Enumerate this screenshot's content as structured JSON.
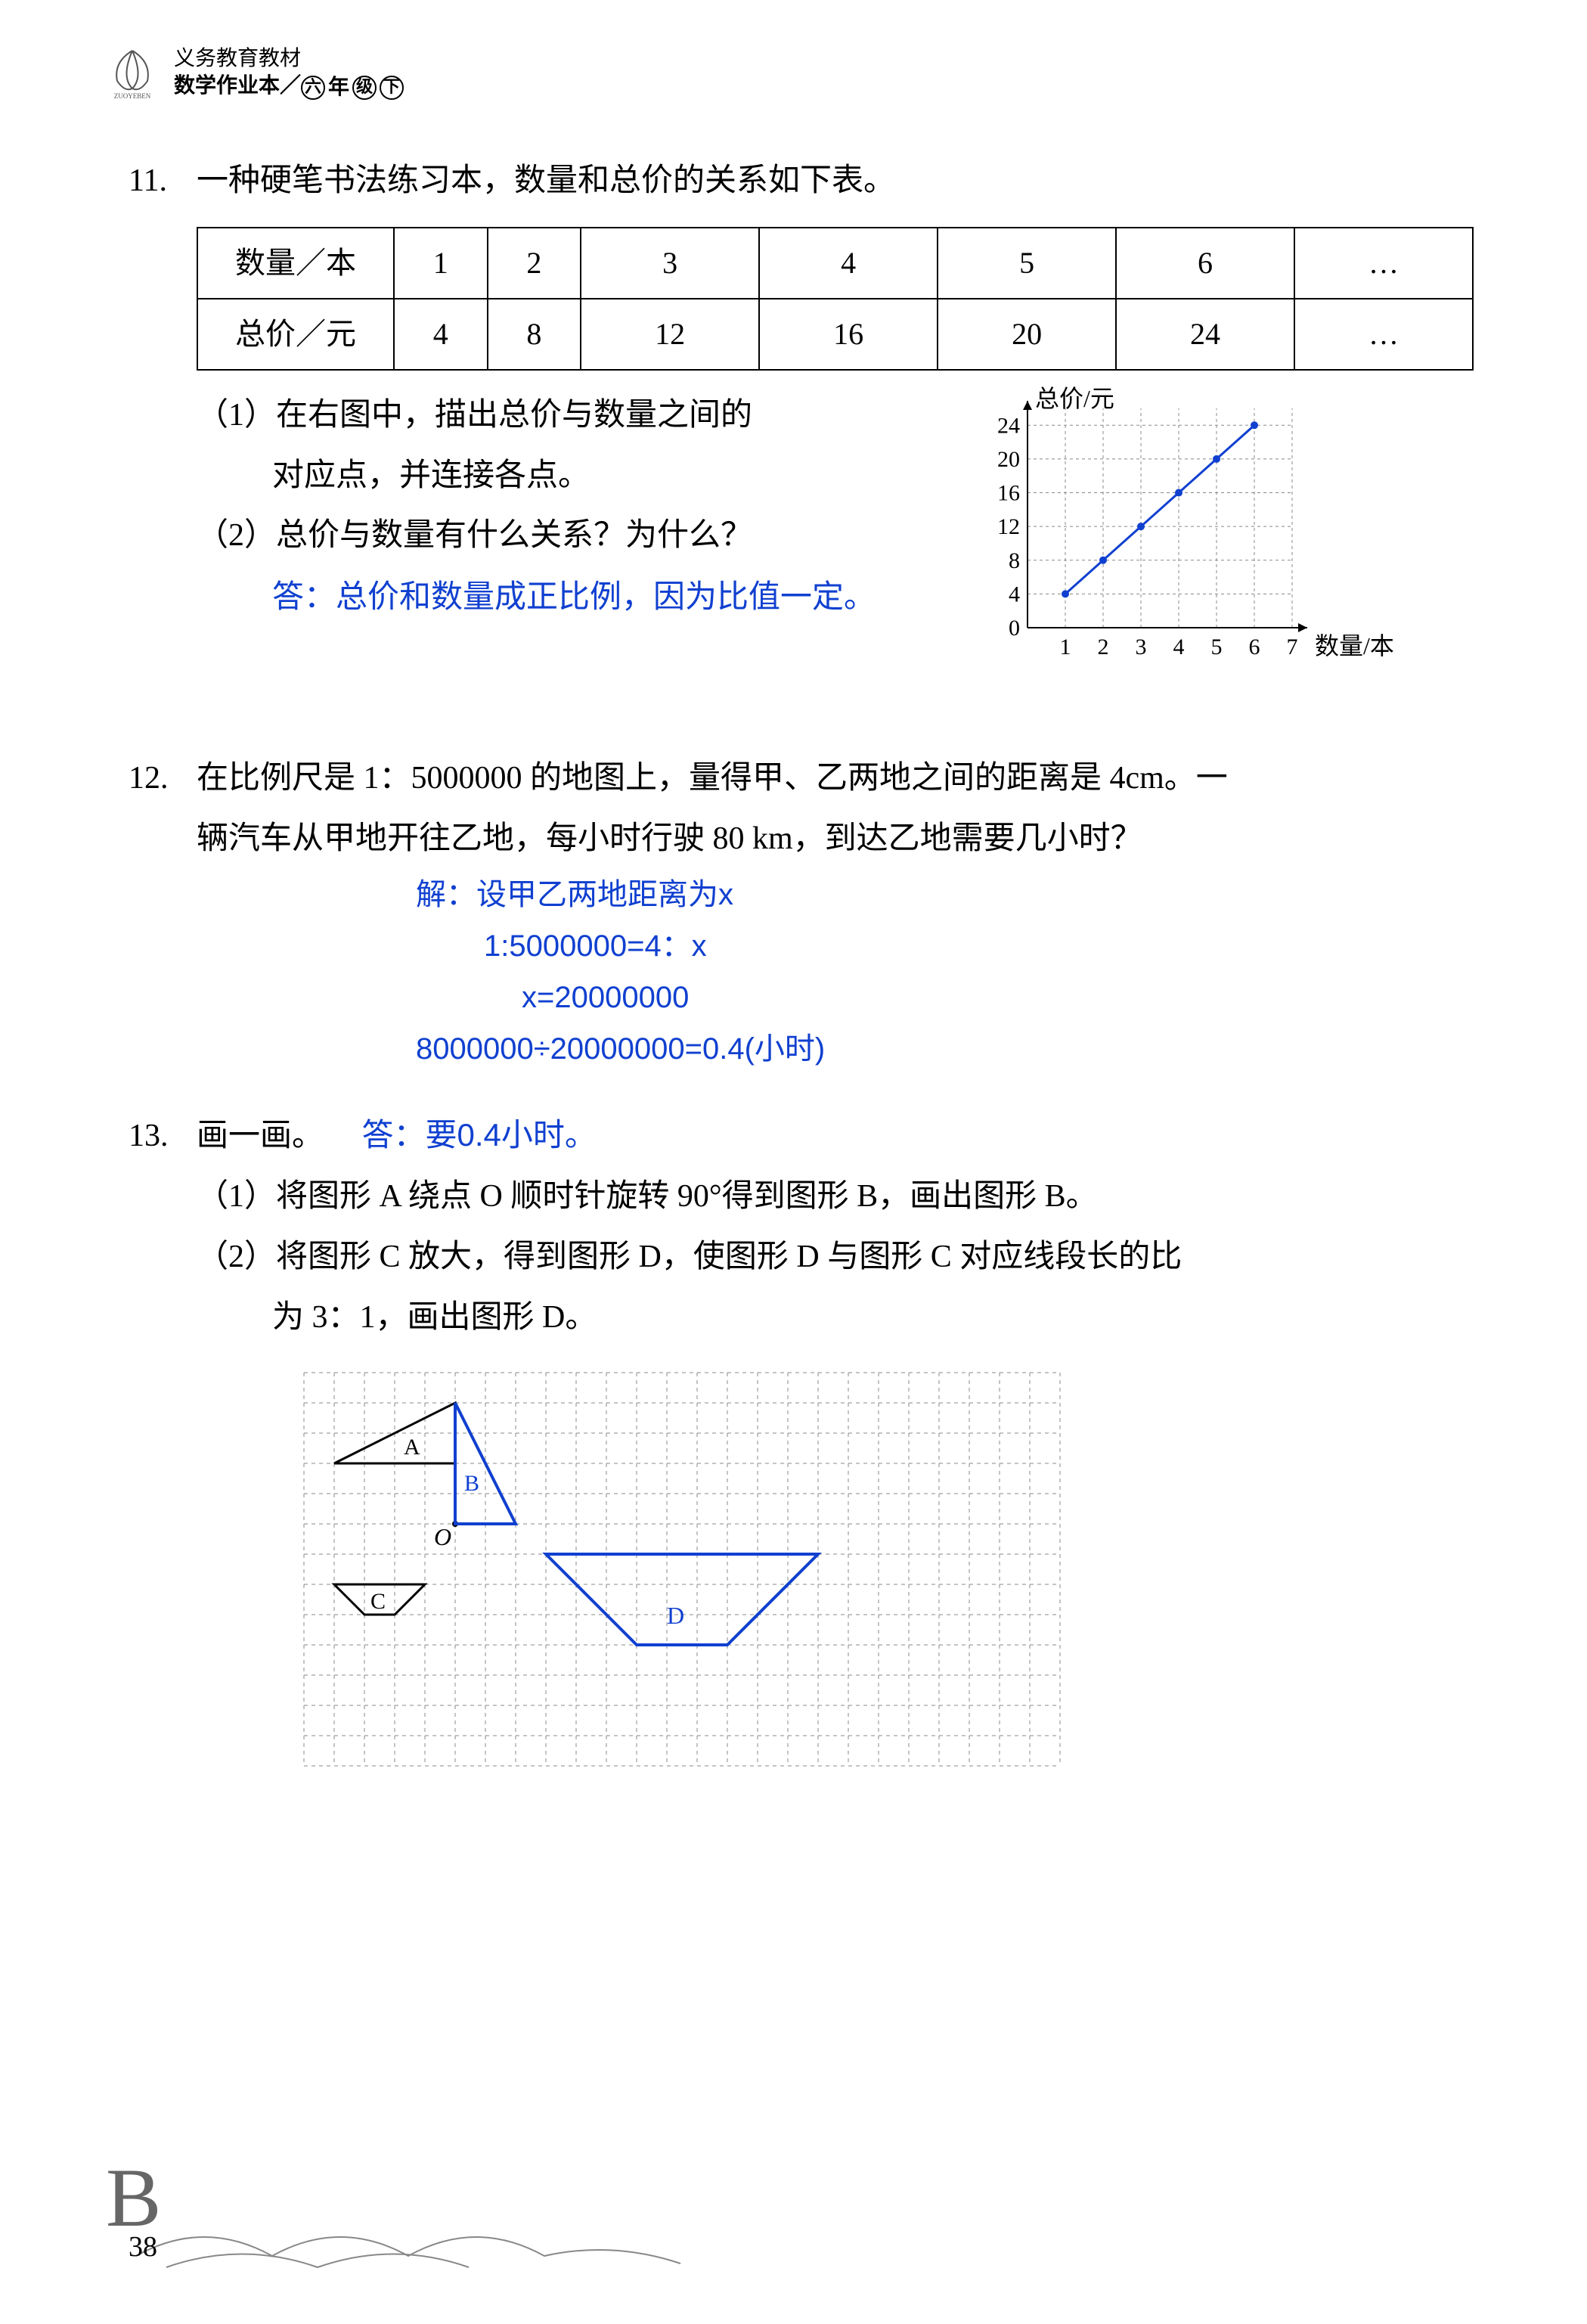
{
  "header": {
    "line1": "义务教育教材",
    "line2": "数学作业本／",
    "grade1": "六",
    "grade2": "年",
    "grade3": "级",
    "vol": "下"
  },
  "p11": {
    "num": "11.",
    "text": "一种硬笔书法练习本，数量和总价的关系如下表。",
    "table": {
      "row1_label": "数量／本",
      "row2_label": "总价／元",
      "cols": [
        "1",
        "2",
        "3",
        "4",
        "5",
        "6",
        "…"
      ],
      "row2": [
        "4",
        "8",
        "12",
        "16",
        "20",
        "24",
        "…"
      ]
    },
    "sub1_label": "（1）",
    "sub1_l1": "在右图中，描出总价与数量之间的",
    "sub1_l2": "对应点，并连接各点。",
    "sub2_label": "（2）",
    "sub2": "总价与数量有什么关系？为什么？",
    "answer2": "答：总价和数量成正比例，因为比值一定。",
    "chart": {
      "ylabel": "总价/元",
      "xlabel": "数量/本",
      "yticks": [
        "0",
        "4",
        "8",
        "12",
        "16",
        "20",
        "24"
      ],
      "xticks": [
        "1",
        "2",
        "3",
        "4",
        "5",
        "6",
        "7"
      ],
      "yvals": [
        0,
        4,
        8,
        12,
        16,
        20,
        24
      ],
      "xmax": 7,
      "ymax": 26,
      "points_x": [
        1,
        2,
        3,
        4,
        5,
        6
      ],
      "points_y": [
        4,
        8,
        12,
        16,
        20,
        24
      ],
      "line_color": "#1040d0",
      "grid_color": "#888888",
      "text_color": "#000000",
      "bg": "#ffffff"
    }
  },
  "p12": {
    "num": "12.",
    "l1": "在比例尺是 1：5000000 的地图上，量得甲、乙两地之间的距离是 4cm。一",
    "l2": "辆汽车从甲地开往乙地，每小时行驶 80 km，到达乙地需要几小时？",
    "sol1": "解：设甲乙两地距离为x",
    "sol2": "1:5000000=4：x",
    "sol3": "x=20000000",
    "sol4": "8000000÷20000000=0.4(小时)",
    "sol5": "答：要0.4小时。"
  },
  "p13": {
    "num": "13.",
    "text": "画一画。",
    "sub1_label": "（1）",
    "sub1": "将图形 A 绕点 O 顺时针旋转 90°得到图形 B，画出图形 B。",
    "sub2_label": "（2）",
    "sub2_l1": "将图形 C 放大，得到图形 D，使图形 D 与图形 C 对应线段长的比",
    "sub2_l2": "为 3：1，画出图形 D。",
    "grid": {
      "cols": 25,
      "rows": 13,
      "cell": 40,
      "grid_color": "#888888",
      "black": "#000000",
      "blue": "#1040d0",
      "A_label": "A",
      "B_label": "B",
      "C_label": "C",
      "D_label": "D",
      "O_label": "O",
      "A_poly": [
        [
          1,
          3
        ],
        [
          5,
          3
        ],
        [
          5,
          1
        ]
      ],
      "O_point": [
        5,
        5
      ],
      "B_poly": [
        [
          5,
          5
        ],
        [
          7,
          5
        ],
        [
          5,
          1
        ]
      ],
      "C_poly": [
        [
          1,
          7
        ],
        [
          4,
          7
        ],
        [
          3,
          8
        ],
        [
          2,
          8
        ]
      ],
      "D_poly": [
        [
          8,
          6
        ],
        [
          17,
          6
        ],
        [
          14,
          9
        ],
        [
          11,
          9
        ]
      ]
    }
  },
  "page_num": "38",
  "footer_B": "B"
}
